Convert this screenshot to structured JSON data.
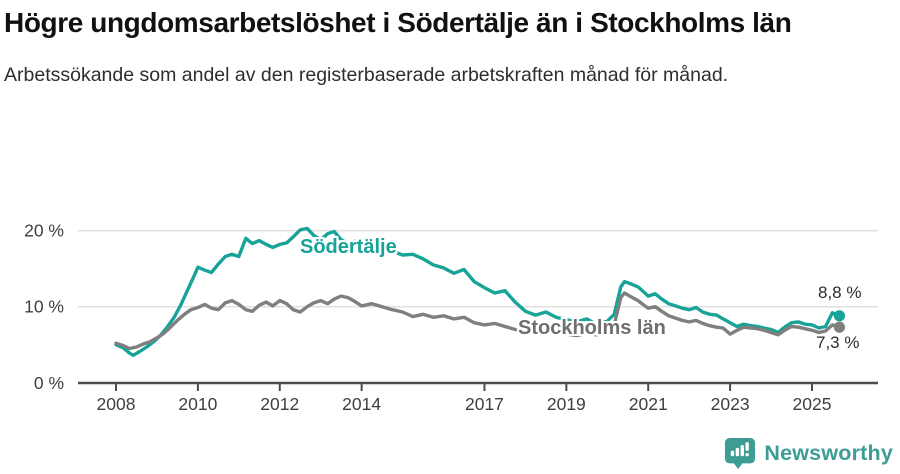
{
  "header": {
    "title": "Högre ungdomsarbetslöshet i Södertälje än i Stockholms län",
    "subtitle": "Arbetssökande som andel av den registerbaserade arbetskraften månad för månad."
  },
  "chart_data": {
    "type": "line",
    "title": "Högre ungdomsarbetslöshet i Södertälje än i Stockholms län",
    "subtitle": "Arbetssökande som andel av den registerbaserade arbetskraften månad för månad.",
    "x_axis": {
      "unit": "year",
      "tick_labels": [
        "2008",
        "2010",
        "2012",
        "2014",
        "2017",
        "2019",
        "2021",
        "2023",
        "2025"
      ],
      "ticks": [
        2008,
        2010,
        2012,
        2014,
        2017,
        2019,
        2021,
        2023,
        2025
      ],
      "range_shown": [
        2007.9,
        2026.6
      ]
    },
    "y_axis": {
      "unit": "%",
      "tick_labels": [
        "0 %",
        "10 %",
        "20 %"
      ],
      "ticks": [
        0,
        10,
        20
      ],
      "range": [
        0,
        22
      ],
      "grid": true
    },
    "legend": "inline-labels",
    "series": [
      {
        "name": "Södertälje",
        "color": "#17a398",
        "end_label": "8,8 %",
        "end_value": 8.8,
        "points": [
          [
            2008.0,
            5.0
          ],
          [
            2008.17,
            4.6
          ],
          [
            2008.33,
            3.9
          ],
          [
            2008.42,
            3.6
          ],
          [
            2008.58,
            4.1
          ],
          [
            2008.75,
            4.7
          ],
          [
            2008.92,
            5.4
          ],
          [
            2009.08,
            6.2
          ],
          [
            2009.25,
            7.3
          ],
          [
            2009.42,
            8.6
          ],
          [
            2009.58,
            10.2
          ],
          [
            2009.75,
            12.2
          ],
          [
            2009.92,
            14.2
          ],
          [
            2010.0,
            15.2
          ],
          [
            2010.17,
            14.8
          ],
          [
            2010.33,
            14.5
          ],
          [
            2010.5,
            15.6
          ],
          [
            2010.67,
            16.6
          ],
          [
            2010.83,
            16.9
          ],
          [
            2011.0,
            16.6
          ],
          [
            2011.17,
            19.0
          ],
          [
            2011.33,
            18.3
          ],
          [
            2011.5,
            18.7
          ],
          [
            2011.67,
            18.2
          ],
          [
            2011.83,
            17.8
          ],
          [
            2012.0,
            18.2
          ],
          [
            2012.17,
            18.4
          ],
          [
            2012.33,
            19.2
          ],
          [
            2012.5,
            20.1
          ],
          [
            2012.67,
            20.3
          ],
          [
            2012.83,
            19.4
          ],
          [
            2013.0,
            18.8
          ],
          [
            2013.17,
            19.6
          ],
          [
            2013.33,
            19.9
          ],
          [
            2013.5,
            18.8
          ],
          [
            2013.67,
            18.3
          ],
          [
            2013.83,
            18.6
          ],
          [
            2014.0,
            18.1
          ],
          [
            2014.25,
            17.5
          ],
          [
            2014.5,
            17.9
          ],
          [
            2014.75,
            17.3
          ],
          [
            2015.0,
            16.8
          ],
          [
            2015.25,
            16.9
          ],
          [
            2015.5,
            16.3
          ],
          [
            2015.75,
            15.5
          ],
          [
            2016.0,
            15.1
          ],
          [
            2016.25,
            14.4
          ],
          [
            2016.5,
            14.9
          ],
          [
            2016.75,
            13.3
          ],
          [
            2017.0,
            12.5
          ],
          [
            2017.25,
            11.8
          ],
          [
            2017.5,
            12.1
          ],
          [
            2017.75,
            10.6
          ],
          [
            2018.0,
            9.4
          ],
          [
            2018.25,
            8.9
          ],
          [
            2018.5,
            9.3
          ],
          [
            2018.75,
            8.6
          ],
          [
            2019.0,
            8.3
          ],
          [
            2019.25,
            8.0
          ],
          [
            2019.5,
            8.4
          ],
          [
            2019.75,
            7.6
          ],
          [
            2020.0,
            8.1
          ],
          [
            2020.17,
            9.0
          ],
          [
            2020.33,
            12.6
          ],
          [
            2020.42,
            13.3
          ],
          [
            2020.58,
            13.0
          ],
          [
            2020.75,
            12.6
          ],
          [
            2020.92,
            11.8
          ],
          [
            2021.0,
            11.4
          ],
          [
            2021.17,
            11.7
          ],
          [
            2021.33,
            11.0
          ],
          [
            2021.5,
            10.4
          ],
          [
            2021.67,
            10.1
          ],
          [
            2021.83,
            9.8
          ],
          [
            2022.0,
            9.6
          ],
          [
            2022.17,
            9.9
          ],
          [
            2022.33,
            9.3
          ],
          [
            2022.5,
            9.0
          ],
          [
            2022.67,
            8.9
          ],
          [
            2022.83,
            8.4
          ],
          [
            2023.0,
            7.9
          ],
          [
            2023.17,
            7.4
          ],
          [
            2023.33,
            7.7
          ],
          [
            2023.5,
            7.5
          ],
          [
            2023.67,
            7.4
          ],
          [
            2023.83,
            7.2
          ],
          [
            2024.0,
            7.0
          ],
          [
            2024.17,
            6.6
          ],
          [
            2024.33,
            7.3
          ],
          [
            2024.5,
            7.9
          ],
          [
            2024.67,
            8.0
          ],
          [
            2024.83,
            7.7
          ],
          [
            2025.0,
            7.6
          ],
          [
            2025.17,
            7.2
          ],
          [
            2025.33,
            7.4
          ],
          [
            2025.5,
            9.2
          ],
          [
            2025.67,
            8.8
          ]
        ]
      },
      {
        "name": "Stockholms län",
        "color": "#7f7f7f",
        "end_label": "7,3 %",
        "end_value": 7.3,
        "points": [
          [
            2008.0,
            5.2
          ],
          [
            2008.17,
            4.9
          ],
          [
            2008.33,
            4.5
          ],
          [
            2008.5,
            4.7
          ],
          [
            2008.67,
            5.1
          ],
          [
            2008.83,
            5.4
          ],
          [
            2009.0,
            5.9
          ],
          [
            2009.17,
            6.5
          ],
          [
            2009.33,
            7.3
          ],
          [
            2009.5,
            8.2
          ],
          [
            2009.67,
            9.0
          ],
          [
            2009.83,
            9.6
          ],
          [
            2010.0,
            9.9
          ],
          [
            2010.17,
            10.3
          ],
          [
            2010.33,
            9.8
          ],
          [
            2010.5,
            9.6
          ],
          [
            2010.67,
            10.5
          ],
          [
            2010.83,
            10.8
          ],
          [
            2011.0,
            10.3
          ],
          [
            2011.17,
            9.6
          ],
          [
            2011.33,
            9.4
          ],
          [
            2011.5,
            10.2
          ],
          [
            2011.67,
            10.6
          ],
          [
            2011.83,
            10.1
          ],
          [
            2012.0,
            10.8
          ],
          [
            2012.17,
            10.4
          ],
          [
            2012.33,
            9.6
          ],
          [
            2012.5,
            9.3
          ],
          [
            2012.67,
            10.0
          ],
          [
            2012.83,
            10.5
          ],
          [
            2013.0,
            10.8
          ],
          [
            2013.17,
            10.4
          ],
          [
            2013.33,
            11.0
          ],
          [
            2013.5,
            11.4
          ],
          [
            2013.67,
            11.2
          ],
          [
            2013.83,
            10.7
          ],
          [
            2014.0,
            10.1
          ],
          [
            2014.25,
            10.4
          ],
          [
            2014.5,
            10.0
          ],
          [
            2014.75,
            9.6
          ],
          [
            2015.0,
            9.3
          ],
          [
            2015.25,
            8.7
          ],
          [
            2015.5,
            9.0
          ],
          [
            2015.75,
            8.6
          ],
          [
            2016.0,
            8.8
          ],
          [
            2016.25,
            8.4
          ],
          [
            2016.5,
            8.6
          ],
          [
            2016.75,
            7.9
          ],
          [
            2017.0,
            7.6
          ],
          [
            2017.25,
            7.8
          ],
          [
            2017.5,
            7.4
          ],
          [
            2017.75,
            7.0
          ],
          [
            2018.0,
            6.8
          ],
          [
            2018.25,
            6.6
          ],
          [
            2018.5,
            6.9
          ],
          [
            2018.75,
            6.5
          ],
          [
            2019.0,
            6.4
          ],
          [
            2019.25,
            6.2
          ],
          [
            2019.5,
            6.5
          ],
          [
            2019.75,
            6.3
          ],
          [
            2020.0,
            6.7
          ],
          [
            2020.17,
            7.6
          ],
          [
            2020.33,
            11.2
          ],
          [
            2020.42,
            11.8
          ],
          [
            2020.58,
            11.3
          ],
          [
            2020.75,
            10.8
          ],
          [
            2020.92,
            10.1
          ],
          [
            2021.0,
            9.8
          ],
          [
            2021.17,
            10.0
          ],
          [
            2021.33,
            9.4
          ],
          [
            2021.5,
            8.8
          ],
          [
            2021.67,
            8.5
          ],
          [
            2021.83,
            8.2
          ],
          [
            2022.0,
            8.0
          ],
          [
            2022.17,
            8.2
          ],
          [
            2022.33,
            7.8
          ],
          [
            2022.5,
            7.5
          ],
          [
            2022.67,
            7.3
          ],
          [
            2022.83,
            7.2
          ],
          [
            2023.0,
            6.4
          ],
          [
            2023.17,
            6.9
          ],
          [
            2023.33,
            7.3
          ],
          [
            2023.5,
            7.2
          ],
          [
            2023.67,
            7.1
          ],
          [
            2023.83,
            6.9
          ],
          [
            2024.0,
            6.6
          ],
          [
            2024.17,
            6.3
          ],
          [
            2024.33,
            6.9
          ],
          [
            2024.5,
            7.4
          ],
          [
            2024.67,
            7.3
          ],
          [
            2024.83,
            7.1
          ],
          [
            2025.0,
            6.9
          ],
          [
            2025.17,
            6.6
          ],
          [
            2025.33,
            6.8
          ],
          [
            2025.5,
            7.6
          ],
          [
            2025.67,
            7.3
          ]
        ]
      }
    ],
    "colors": {
      "grid": "#e1e1e1",
      "axis": "#4d4d4d",
      "accent_teal": "#17a398",
      "series_gray": "#7f7f7f"
    }
  },
  "footer": {
    "brand": "Newsworthy",
    "brand_color": "#3d9c94",
    "logo_icon": "newsworthy-barchart-pin-icon"
  }
}
